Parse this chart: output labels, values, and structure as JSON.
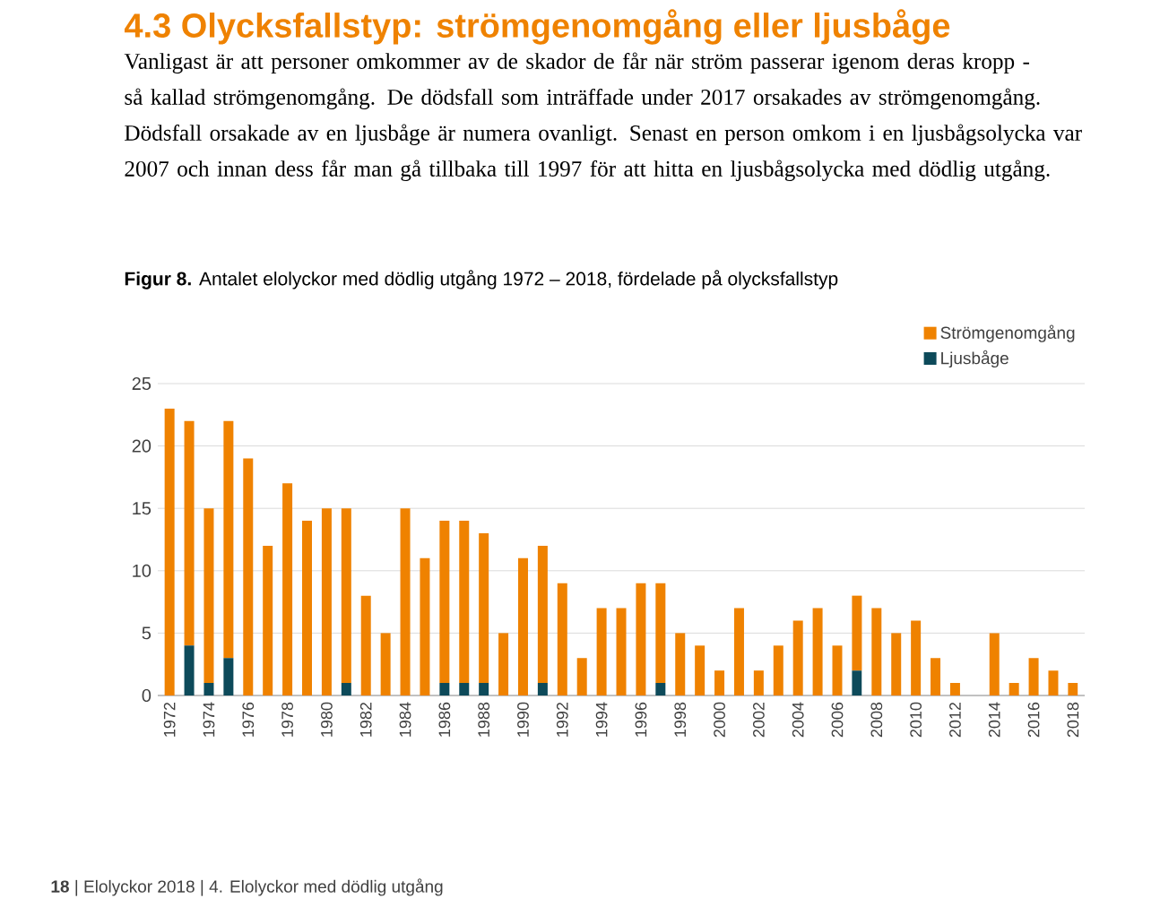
{
  "chart_data": {
    "type": "bar",
    "title": "4.3 Olycksfallstyp: strömgenomgång eller ljusbåge",
    "subtitle": "Vanligast är att personer omkommer av de skador de får när ström passerar igenom deras kropp - så kallad strömgenomgång. De dödsfall som inträffade under 2017 orsakades av strömgenomgång. Dödsfall orsakade av en ljusbåge är numera ovanligt. Senast en person omkom i en ljusbågsolycka var 2007 och innan dess får man gå tillbaka till 1997 för att hitta en ljusbågsolycka med dödlig utgång.",
    "annotations": [
      "**Figur 8.** Antalet elolyckor med dödlig utgång 1972 – 2018, fördelade på olycksfallstyp",
      "**18** | Elolyckor 2018 | 4. Elolyckor med dödlig utgång"
    ],
    "categories": [
      "1972",
      null,
      "1974",
      null,
      "1976",
      null,
      "1978",
      null,
      "1980",
      null,
      "1982",
      null,
      "1984",
      null,
      "1986",
      null,
      "1988",
      null,
      "1990",
      null,
      "1992",
      null,
      "1994",
      null,
      "1996",
      null,
      "1998",
      null,
      "2000",
      null,
      "2002",
      null,
      "2004",
      null,
      "2006",
      null,
      "2008",
      null,
      "2010",
      null,
      "2012",
      null,
      "2014",
      null,
      "2016",
      null,
      "2018"
    ],
    "stacked": true,
    "series": [
      {
        "name": "Ljusbåge",
        "color": "#0d4a5a",
        "values": [
          0,
          4,
          1,
          3,
          0,
          0,
          0,
          0,
          0,
          1,
          0,
          0,
          0,
          0,
          1,
          1,
          1,
          0,
          0,
          1,
          0,
          0,
          0,
          0,
          0,
          1,
          0,
          0,
          0,
          0,
          0,
          0,
          0,
          0,
          0,
          2,
          0,
          0,
          0,
          0,
          0,
          0,
          0,
          0,
          0,
          0,
          0
        ]
      },
      {
        "name": "Strömgenomgång",
        "color": "#ef8200",
        "values": [
          23,
          18,
          14,
          19,
          19,
          12,
          17,
          14,
          15,
          14,
          8,
          5,
          15,
          11,
          13,
          13,
          12,
          5,
          11,
          11,
          9,
          3,
          7,
          7,
          9,
          8,
          5,
          4,
          2,
          7,
          2,
          4,
          6,
          7,
          4,
          6,
          7,
          5,
          6,
          3,
          1,
          0,
          5,
          1,
          3,
          2,
          1
        ]
      }
    ],
    "ylim": [
      0,
      25
    ],
    "yticks": [
      0,
      5,
      10,
      15,
      20,
      25
    ],
    "grid": "y",
    "legend": "top right"
  }
}
